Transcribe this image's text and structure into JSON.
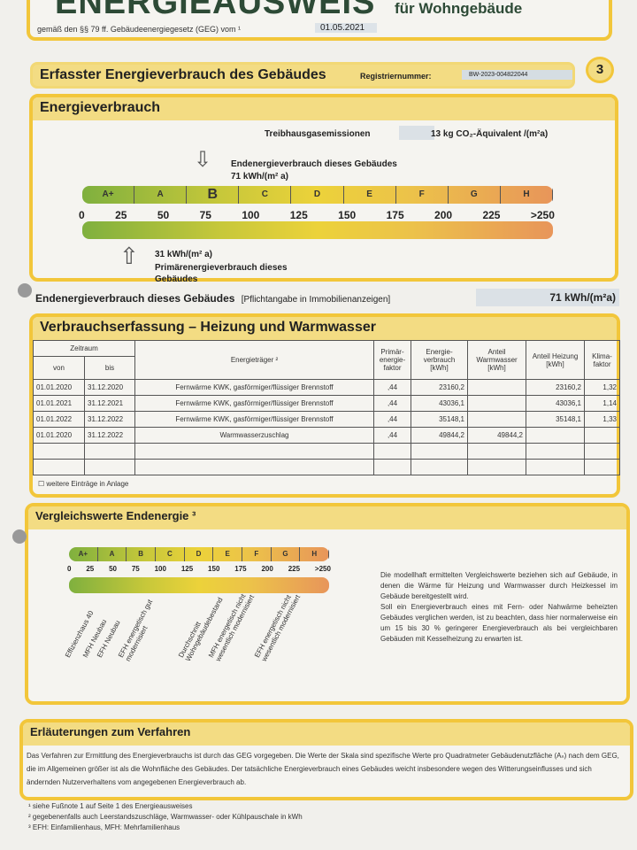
{
  "header": {
    "title": "ENERGIEAUSWEIS",
    "subtitle": "für Wohngebäude",
    "legal": "gemäß den §§ 79 ff. Gebäudeenergiegesetz (GEG) vom ¹",
    "date": "01.05.2021"
  },
  "section_bar": {
    "title": "Erfasster Energieverbrauch des Gebäudes",
    "reg_label": "Registriernummer:",
    "reg_value": "BW-2023-004822044",
    "page": "3"
  },
  "energy": {
    "title": "Energieverbrauch",
    "ghg_label": "Treibhausgasemissionen",
    "ghg_value": "13 kg CO₂-Äquivalent /(m²a)",
    "end_label": "Endenergieverbrauch dieses Gebäudes",
    "end_value": "71 kWh/(m² a)",
    "primary_value": "31 kWh/(m² a)",
    "primary_label": "Primärenergieverbrauch dieses Gebäudes",
    "classes": [
      "A+",
      "A",
      "B",
      "C",
      "D",
      "E",
      "F",
      "G",
      "H"
    ],
    "ticks": [
      "0",
      "25",
      "50",
      "75",
      "100",
      "125",
      "150",
      "175",
      "200",
      "225",
      ">250"
    ],
    "end_kwh": 71,
    "primary_kwh": 31
  },
  "end_line": {
    "label": "Endenergieverbrauch dieses Gebäudes",
    "note": "[Pflichtangabe in Immobilienanzeigen]",
    "value": "71 kWh/(m²a)"
  },
  "consumption": {
    "title": "Verbrauchserfassung – Heizung und Warmwasser",
    "headers": {
      "period": "Zeitraum",
      "from": "von",
      "to": "bis",
      "carrier": "Energieträger ²",
      "pef": "Primär-energie-faktor",
      "use": "Energie-verbrauch [kWh]",
      "ww": "Anteil Warmwasser [kWh]",
      "heat": "Anteil Heizung [kWh]",
      "clim": "Klima-faktor"
    },
    "rows": [
      [
        "01.01.2020",
        "31.12.2020",
        "Fernwärme KWK, gasförmiger/flüssiger Brennstoff",
        ",44",
        "23160,2",
        "",
        "23160,2",
        "1,32"
      ],
      [
        "01.01.2021",
        "31.12.2021",
        "Fernwärme KWK, gasförmiger/flüssiger Brennstoff",
        ",44",
        "43036,1",
        "",
        "43036,1",
        "1,14"
      ],
      [
        "01.01.2022",
        "31.12.2022",
        "Fernwärme KWK, gasförmiger/flüssiger Brennstoff",
        ",44",
        "35148,1",
        "",
        "35148,1",
        "1,33"
      ],
      [
        "01.01.2020",
        "31.12.2022",
        "Warmwasserzuschlag",
        ",44",
        "49844,2",
        "49844,2",
        "",
        ""
      ],
      [
        "",
        "",
        "",
        "",
        "",
        "",
        "",
        ""
      ],
      [
        "",
        "",
        "",
        "",
        "",
        "",
        "",
        ""
      ]
    ],
    "more": "weitere Einträge in Anlage"
  },
  "compare": {
    "title": "Vergleichswerte Endenergie ³",
    "labels": [
      "Effizienzhaus 40",
      "MFH Neubau",
      "EFH Neubau",
      "EFH energetisch gut modernisiert",
      "Durchschnitt Wohngebäudebestand",
      "MFH energetisch nicht wesentlich modernisiert",
      "EFH energetisch nicht wesentlich modernisiert"
    ],
    "text": "Die modellhaft ermittelten Vergleichswerte beziehen sich auf Gebäude, in denen die Wärme für Heizung und Warmwasser durch Heizkessel im Gebäude bereitgestellt wird.\nSoll ein Energieverbrauch eines mit Fern- oder Nahwärme beheizten Gebäudes verglichen werden, ist zu beachten, dass hier normalerweise ein um 15 bis 30 % geringerer Energieverbrauch als bei vergleichbaren Gebäuden mit Kesselheizung zu erwarten ist."
  },
  "explain": {
    "title": "Erläuterungen zum Verfahren",
    "text": "Das Verfahren zur Ermittlung des Energieverbrauchs ist durch das GEG vorgegeben. Die Werte der Skala sind spezifische Werte pro Quadratmeter Gebäudenutzfläche (Aₙ) nach dem GEG, die im Allgemeinen größer ist als die Wohnfläche des Gebäudes. Der tatsächliche Energieverbrauch eines Gebäudes weicht insbesondere wegen des Witterungseinflusses und sich ändernden Nutzerverhaltens vom angegebenen Energieverbrauch ab."
  },
  "footnotes": [
    "¹ siehe Fußnote 1 auf Seite 1 des Energieausweises",
    "² gegebenenfalls auch Leerstandszuschläge, Warmwasser- oder Kühlpauschale in kWh",
    "³ EFH: Einfamilienhaus, MFH: Mehrfamilienhaus"
  ],
  "colors": {
    "frame": "#f2c63a",
    "header_fill": "#f3dc83"
  }
}
